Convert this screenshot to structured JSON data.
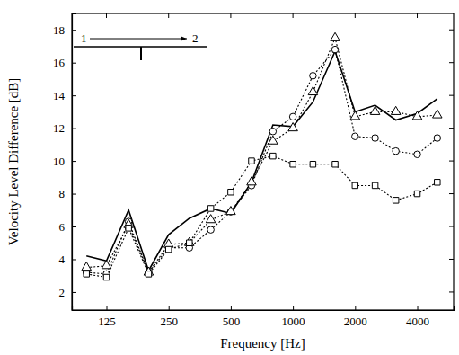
{
  "chart_data": {
    "type": "line",
    "x_label": "Frequency [Hz]",
    "y_label": "Velocity Level Difference [dB]",
    "log": "x",
    "x": [
      100,
      125,
      160,
      200,
      250,
      315,
      400,
      500,
      630,
      800,
      1000,
      1250,
      1600,
      2000,
      2500,
      3150,
      4000,
      5000
    ],
    "xlim": [
      85,
      6000
    ],
    "xticks": [
      125,
      250,
      500,
      1000,
      2000,
      4000
    ],
    "ylim": [
      0.9,
      19
    ],
    "yticks": [
      2,
      4,
      6,
      8,
      10,
      12,
      14,
      16,
      18
    ],
    "annotations": [
      {
        "text": "1"
      },
      {
        "text": "2"
      }
    ],
    "series": [
      {
        "color": "#000000",
        "marker": "none",
        "line_style": "solid",
        "values": [
          4.2,
          3.9,
          7.0,
          3.3,
          5.5,
          6.5,
          7.1,
          6.8,
          8.7,
          12.2,
          12.1,
          13.6,
          16.7,
          13.0,
          13.4,
          12.5,
          12.9,
          13.8
        ]
      },
      {
        "color": "#000000",
        "marker": "circle",
        "line_style": "dotted",
        "values": [
          3.2,
          3.1,
          6.3,
          3.2,
          4.7,
          4.7,
          5.8,
          6.9,
          8.5,
          11.8,
          12.7,
          15.2,
          16.8,
          11.5,
          11.4,
          10.6,
          10.4,
          11.4
        ]
      },
      {
        "color": "#000000",
        "marker": "triangle",
        "line_style": "dotted",
        "values": [
          3.5,
          3.6,
          6.1,
          3.2,
          4.9,
          5.0,
          6.4,
          6.9,
          8.7,
          11.2,
          12.0,
          14.2,
          17.5,
          12.7,
          13.0,
          13.0,
          12.7,
          12.8
        ]
      },
      {
        "color": "#000000",
        "marker": "square",
        "line_style": "dotted",
        "values": [
          3.1,
          2.9,
          5.9,
          3.1,
          4.6,
          5.0,
          7.1,
          8.1,
          10.0,
          10.3,
          9.8,
          9.8,
          9.8,
          8.5,
          8.5,
          7.6,
          8.0,
          8.7
        ]
      }
    ]
  }
}
